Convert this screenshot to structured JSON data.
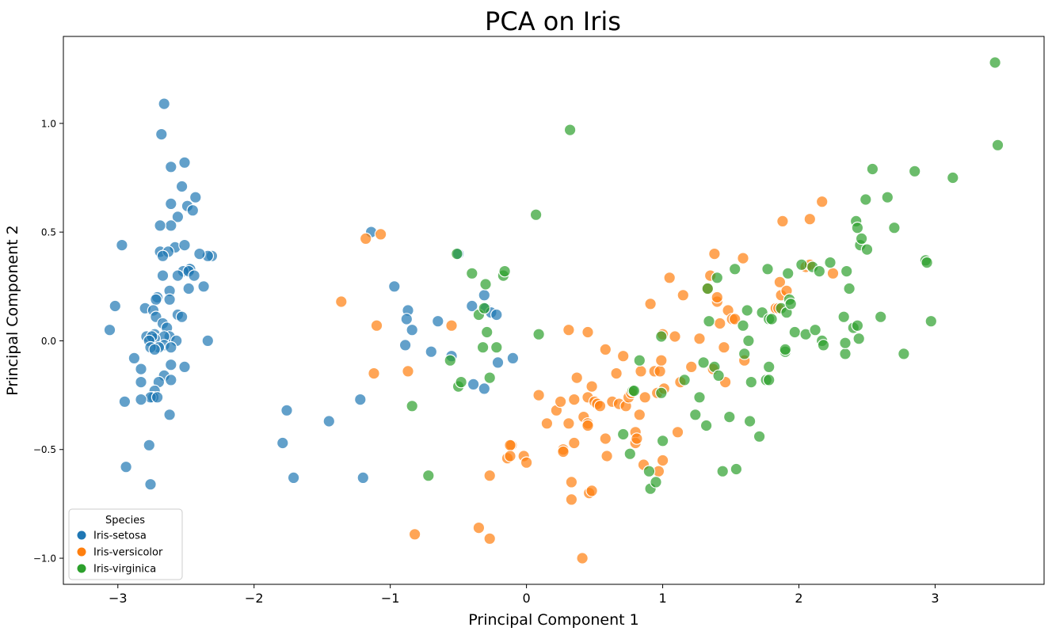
{
  "chart_data": {
    "type": "scatter",
    "title": "PCA on Iris",
    "xlabel": "Principal Component 1",
    "ylabel": "Principal Component 2",
    "xlim": [
      -3.4,
      3.8
    ],
    "ylim": [
      -1.12,
      1.4
    ],
    "x_ticks": [
      -3,
      -2,
      -1,
      0,
      1,
      2,
      3
    ],
    "x_tick_labels": [
      "−3",
      "−2",
      "−1",
      "0",
      "1",
      "2",
      "3"
    ],
    "y_ticks": [
      -1.0,
      -0.5,
      0.0,
      0.5,
      1.0
    ],
    "y_tick_labels": [
      "−1.0",
      "−0.5",
      "0.0",
      "0.5",
      "1.0"
    ],
    "grid": false,
    "legend": {
      "title": "Species",
      "placement": "bottom-left"
    },
    "series": [
      {
        "name": "Iris-setosa",
        "color": "#1f77b4",
        "points": [
          [
            -2.66,
            1.09
          ],
          [
            -2.68,
            0.95
          ],
          [
            -2.61,
            0.8
          ],
          [
            -2.51,
            0.82
          ],
          [
            -2.53,
            0.71
          ],
          [
            -2.43,
            0.66
          ],
          [
            -2.61,
            0.63
          ],
          [
            -2.49,
            0.62
          ],
          [
            -2.45,
            0.6
          ],
          [
            -2.56,
            0.57
          ],
          [
            -2.61,
            0.53
          ],
          [
            -2.69,
            0.53
          ],
          [
            -2.58,
            0.43
          ],
          [
            -2.51,
            0.44
          ],
          [
            -2.97,
            0.44
          ],
          [
            -2.69,
            0.41
          ],
          [
            -2.63,
            0.41
          ],
          [
            -2.67,
            0.39
          ],
          [
            -2.31,
            0.39
          ],
          [
            -2.34,
            0.39
          ],
          [
            -2.4,
            0.4
          ],
          [
            -2.48,
            0.33
          ],
          [
            -2.47,
            0.33
          ],
          [
            -2.52,
            0.32
          ],
          [
            -2.48,
            0.32
          ],
          [
            -2.56,
            0.3
          ],
          [
            -2.44,
            0.3
          ],
          [
            -2.67,
            0.3
          ],
          [
            -2.37,
            0.25
          ],
          [
            -2.48,
            0.24
          ],
          [
            -2.62,
            0.23
          ],
          [
            -2.71,
            0.2
          ],
          [
            -2.72,
            0.19
          ],
          [
            -2.62,
            0.19
          ],
          [
            -3.02,
            0.16
          ],
          [
            -2.8,
            0.15
          ],
          [
            -2.74,
            0.14
          ],
          [
            -2.56,
            0.12
          ],
          [
            -2.72,
            0.11
          ],
          [
            -2.53,
            0.11
          ],
          [
            -2.67,
            0.08
          ],
          [
            -2.64,
            0.06
          ],
          [
            -3.06,
            0.05
          ],
          [
            -2.73,
            0.03
          ],
          [
            -2.62,
            0.02
          ],
          [
            -2.66,
            0.02
          ],
          [
            -2.73,
            0.01
          ],
          [
            -2.79,
            0.02
          ],
          [
            -2.75,
            0.02
          ],
          [
            -2.77,
            0.0
          ],
          [
            -2.57,
            0.0
          ],
          [
            -2.66,
            -0.02
          ],
          [
            -2.34,
            0.0
          ],
          [
            -2.7,
            -0.03
          ],
          [
            -2.61,
            -0.03
          ],
          [
            -2.76,
            -0.03
          ],
          [
            -2.73,
            -0.04
          ],
          [
            -2.88,
            -0.08
          ],
          [
            -2.83,
            -0.13
          ],
          [
            -2.51,
            -0.12
          ],
          [
            -2.61,
            -0.11
          ],
          [
            -2.66,
            -0.16
          ],
          [
            -2.61,
            -0.18
          ],
          [
            -2.7,
            -0.19
          ],
          [
            -2.83,
            -0.19
          ],
          [
            -2.73,
            -0.23
          ],
          [
            -2.74,
            -0.26
          ],
          [
            -2.76,
            -0.26
          ],
          [
            -2.71,
            -0.26
          ],
          [
            -2.83,
            -0.27
          ],
          [
            -2.95,
            -0.28
          ],
          [
            -2.62,
            -0.34
          ],
          [
            -2.77,
            -0.48
          ],
          [
            -2.94,
            -0.58
          ],
          [
            -2.76,
            -0.66
          ],
          [
            -1.79,
            -0.47
          ],
          [
            -1.76,
            -0.32
          ],
          [
            -1.71,
            -0.63
          ],
          [
            -1.45,
            -0.37
          ],
          [
            -1.22,
            -0.27
          ],
          [
            -1.2,
            -0.63
          ],
          [
            -1.14,
            0.5
          ],
          [
            -0.97,
            0.25
          ],
          [
            -0.87,
            0.14
          ],
          [
            -0.88,
            0.1
          ],
          [
            -0.84,
            0.05
          ],
          [
            -0.89,
            -0.02
          ],
          [
            -0.7,
            -0.05
          ],
          [
            -0.65,
            0.09
          ],
          [
            -0.55,
            -0.07
          ],
          [
            -0.4,
            0.16
          ],
          [
            -0.31,
            0.21
          ],
          [
            -0.3,
            0.15
          ],
          [
            -0.26,
            0.13
          ],
          [
            -0.22,
            0.12
          ],
          [
            -0.21,
            -0.1
          ],
          [
            -0.1,
            -0.08
          ],
          [
            -0.31,
            -0.22
          ],
          [
            -0.39,
            -0.2
          ],
          [
            -0.5,
            0.4
          ]
        ]
      },
      {
        "name": "Iris-versicolor",
        "color": "#ff7f0e",
        "points": [
          [
            -1.36,
            0.18
          ],
          [
            -1.18,
            0.47
          ],
          [
            -1.07,
            0.49
          ],
          [
            -1.1,
            0.07
          ],
          [
            -1.12,
            -0.15
          ],
          [
            -0.87,
            -0.14
          ],
          [
            -0.82,
            -0.89
          ],
          [
            -0.55,
            0.07
          ],
          [
            -0.35,
            -0.86
          ],
          [
            -0.27,
            -0.91
          ],
          [
            -0.27,
            -0.62
          ],
          [
            -0.14,
            -0.54
          ],
          [
            -0.11,
            -0.48
          ],
          [
            -0.12,
            -0.48
          ],
          [
            -0.12,
            -0.53
          ],
          [
            -0.02,
            -0.53
          ],
          [
            0.0,
            -0.56
          ],
          [
            0.09,
            -0.25
          ],
          [
            0.15,
            -0.38
          ],
          [
            0.22,
            -0.32
          ],
          [
            0.25,
            -0.28
          ],
          [
            0.27,
            -0.5
          ],
          [
            0.27,
            -0.51
          ],
          [
            0.31,
            -0.38
          ],
          [
            0.31,
            0.05
          ],
          [
            0.33,
            -0.65
          ],
          [
            0.33,
            -0.73
          ],
          [
            0.35,
            -0.47
          ],
          [
            0.35,
            -0.27
          ],
          [
            0.37,
            -0.17
          ],
          [
            0.41,
            -1.0
          ],
          [
            0.42,
            -0.35
          ],
          [
            0.45,
            -0.38
          ],
          [
            0.45,
            -0.39
          ],
          [
            0.45,
            -0.26
          ],
          [
            0.45,
            0.04
          ],
          [
            0.46,
            -0.7
          ],
          [
            0.48,
            -0.69
          ],
          [
            0.48,
            -0.21
          ],
          [
            0.5,
            -0.28
          ],
          [
            0.52,
            -0.29
          ],
          [
            0.54,
            -0.3
          ],
          [
            0.58,
            -0.04
          ],
          [
            0.58,
            -0.45
          ],
          [
            0.59,
            -0.53
          ],
          [
            0.63,
            -0.28
          ],
          [
            0.66,
            -0.15
          ],
          [
            0.68,
            -0.29
          ],
          [
            0.71,
            -0.07
          ],
          [
            0.73,
            -0.3
          ],
          [
            0.75,
            -0.26
          ],
          [
            0.77,
            -0.24
          ],
          [
            0.8,
            -0.42
          ],
          [
            0.8,
            -0.47
          ],
          [
            0.81,
            -0.45
          ],
          [
            0.83,
            -0.34
          ],
          [
            0.84,
            -0.14
          ],
          [
            0.86,
            -0.57
          ],
          [
            0.87,
            -0.26
          ],
          [
            0.91,
            0.17
          ],
          [
            0.94,
            -0.14
          ],
          [
            0.96,
            -0.24
          ],
          [
            0.97,
            -0.6
          ],
          [
            0.98,
            -0.14
          ],
          [
            0.99,
            -0.09
          ],
          [
            1.0,
            -0.55
          ],
          [
            1.0,
            0.03
          ],
          [
            1.01,
            -0.22
          ],
          [
            1.05,
            0.29
          ],
          [
            1.09,
            0.02
          ],
          [
            1.11,
            -0.42
          ],
          [
            1.13,
            -0.19
          ],
          [
            1.15,
            0.21
          ],
          [
            1.21,
            -0.12
          ],
          [
            1.27,
            0.01
          ],
          [
            1.33,
            0.24
          ],
          [
            1.35,
            0.3
          ],
          [
            1.37,
            -0.13
          ],
          [
            1.38,
            0.4
          ],
          [
            1.4,
            0.18
          ],
          [
            1.4,
            0.2
          ],
          [
            1.42,
            0.08
          ],
          [
            1.45,
            -0.03
          ],
          [
            1.46,
            -0.19
          ],
          [
            1.48,
            0.14
          ],
          [
            1.51,
            0.1
          ],
          [
            1.53,
            0.1
          ],
          [
            1.59,
            0.38
          ],
          [
            1.6,
            -0.09
          ],
          [
            1.83,
            0.15
          ],
          [
            1.86,
            0.27
          ],
          [
            1.87,
            0.21
          ],
          [
            1.88,
            0.55
          ],
          [
            1.91,
            0.23
          ],
          [
            2.05,
            0.34
          ],
          [
            2.08,
            0.56
          ],
          [
            2.08,
            0.35
          ],
          [
            2.17,
            0.64
          ],
          [
            2.25,
            0.31
          ],
          [
            1.85,
            0.15
          ]
        ]
      },
      {
        "name": "Iris-virginica",
        "color": "#2ca02c",
        "points": [
          [
            -0.84,
            -0.3
          ],
          [
            -0.72,
            -0.62
          ],
          [
            -0.56,
            -0.09
          ],
          [
            -0.51,
            0.4
          ],
          [
            -0.5,
            -0.21
          ],
          [
            -0.48,
            -0.19
          ],
          [
            -0.4,
            0.31
          ],
          [
            -0.35,
            0.12
          ],
          [
            -0.32,
            -0.03
          ],
          [
            -0.31,
            0.15
          ],
          [
            -0.3,
            0.26
          ],
          [
            -0.29,
            0.04
          ],
          [
            -0.27,
            -0.17
          ],
          [
            -0.22,
            -0.03
          ],
          [
            -0.17,
            0.3
          ],
          [
            -0.16,
            0.32
          ],
          [
            0.07,
            0.58
          ],
          [
            0.09,
            0.03
          ],
          [
            0.32,
            0.97
          ],
          [
            0.71,
            -0.43
          ],
          [
            0.76,
            -0.52
          ],
          [
            0.78,
            -0.23
          ],
          [
            0.83,
            -0.09
          ],
          [
            0.9,
            -0.6
          ],
          [
            0.91,
            -0.68
          ],
          [
            0.95,
            -0.65
          ],
          [
            0.99,
            0.02
          ],
          [
            0.99,
            -0.24
          ],
          [
            1.0,
            -0.46
          ],
          [
            1.16,
            -0.18
          ],
          [
            1.24,
            -0.34
          ],
          [
            1.27,
            -0.26
          ],
          [
            1.3,
            -0.1
          ],
          [
            1.32,
            -0.39
          ],
          [
            1.33,
            0.24
          ],
          [
            1.34,
            0.09
          ],
          [
            1.38,
            -0.12
          ],
          [
            1.4,
            0.29
          ],
          [
            1.41,
            -0.16
          ],
          [
            1.44,
            -0.6
          ],
          [
            1.49,
            -0.35
          ],
          [
            1.54,
            -0.59
          ],
          [
            1.53,
            0.33
          ],
          [
            1.59,
            0.07
          ],
          [
            1.6,
            -0.06
          ],
          [
            1.62,
            0.14
          ],
          [
            1.63,
            0.0
          ],
          [
            1.64,
            -0.37
          ],
          [
            1.65,
            -0.19
          ],
          [
            1.71,
            -0.44
          ],
          [
            1.73,
            0.13
          ],
          [
            1.76,
            -0.18
          ],
          [
            1.77,
            0.33
          ],
          [
            1.78,
            -0.12
          ],
          [
            1.78,
            0.1
          ],
          [
            1.8,
            0.1
          ],
          [
            1.87,
            0.15
          ],
          [
            1.9,
            -0.05
          ],
          [
            1.91,
            0.13
          ],
          [
            1.92,
            0.31
          ],
          [
            1.93,
            0.19
          ],
          [
            1.94,
            0.17
          ],
          [
            1.97,
            0.04
          ],
          [
            2.02,
            0.35
          ],
          [
            2.05,
            0.03
          ],
          [
            2.1,
            0.34
          ],
          [
            2.12,
            0.05
          ],
          [
            2.15,
            0.32
          ],
          [
            2.17,
            0.0
          ],
          [
            2.18,
            -0.02
          ],
          [
            2.23,
            0.36
          ],
          [
            2.33,
            0.11
          ],
          [
            2.34,
            -0.06
          ],
          [
            2.34,
            -0.01
          ],
          [
            2.35,
            0.32
          ],
          [
            2.37,
            0.24
          ],
          [
            2.4,
            0.06
          ],
          [
            2.42,
            0.55
          ],
          [
            2.43,
            0.07
          ],
          [
            2.43,
            0.52
          ],
          [
            2.44,
            0.01
          ],
          [
            2.45,
            0.44
          ],
          [
            2.46,
            0.47
          ],
          [
            2.49,
            0.65
          ],
          [
            2.5,
            0.42
          ],
          [
            2.54,
            0.79
          ],
          [
            2.6,
            0.11
          ],
          [
            2.65,
            0.66
          ],
          [
            2.7,
            0.52
          ],
          [
            2.77,
            -0.06
          ],
          [
            2.85,
            0.78
          ],
          [
            2.93,
            0.37
          ],
          [
            2.94,
            0.36
          ],
          [
            2.97,
            0.09
          ],
          [
            3.13,
            0.75
          ],
          [
            3.44,
            1.28
          ],
          [
            3.46,
            0.9
          ],
          [
            1.78,
            -0.18
          ],
          [
            1.9,
            -0.04
          ],
          [
            0.79,
            -0.23
          ]
        ]
      }
    ]
  }
}
